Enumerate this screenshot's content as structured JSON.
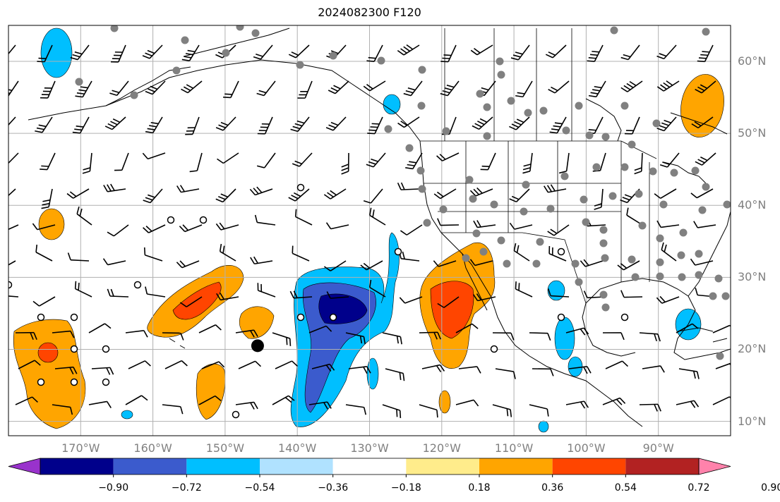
{
  "title": "2024082300 F120",
  "map": {
    "lon_labels": [
      "170°W",
      "160°W",
      "150°W",
      "140°W",
      "130°W",
      "120°W",
      "110°W",
      "100°W",
      "90°W"
    ],
    "lat_labels": [
      "60°N",
      "50°N",
      "40°N",
      "30°N",
      "20°N",
      "10°N"
    ],
    "lon_range": [
      -180,
      -80
    ],
    "lat_range": [
      8,
      65
    ],
    "land_fill": "#ffffff",
    "ocean_fill": "#ffffff",
    "gridline_color": "#b0b0b0",
    "station_marker_color": "#808080",
    "calm_marker": "open-circle",
    "highlight_point": {
      "lon": -145.5,
      "lat": 20.5
    }
  },
  "colorbar": {
    "tick_labels": [
      "−0.90",
      "−0.72",
      "−0.54",
      "−0.36",
      "−0.18",
      "0.18",
      "0.36",
      "0.54",
      "0.72",
      "0.90"
    ],
    "colors": [
      "#9932cc",
      "#00008b",
      "#3b5bcd",
      "#00bfff",
      "#b0e2ff",
      "#ffffff",
      "#ffec8b",
      "#ffa500",
      "#ff4500",
      "#b22222",
      "#ff82ab"
    ],
    "extend": "both"
  }
}
